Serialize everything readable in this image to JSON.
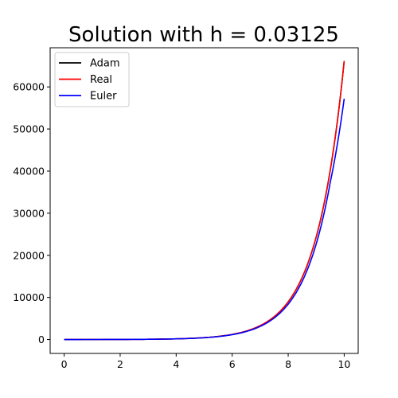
{
  "chart_data": {
    "type": "line",
    "title": "Solution with h = 0.03125",
    "xlabel": "",
    "ylabel": "",
    "xlim": [
      -0.5,
      10.5
    ],
    "ylim": [
      -3300,
      69300
    ],
    "x_ticks": [
      0,
      2,
      4,
      6,
      8,
      10
    ],
    "y_ticks": [
      0,
      10000,
      20000,
      30000,
      40000,
      50000,
      60000
    ],
    "x_tick_labels": [
      "0",
      "2",
      "4",
      "6",
      "8",
      "10"
    ],
    "y_tick_labels": [
      "0",
      "10000",
      "20000",
      "30000",
      "40000",
      "50000",
      "60000"
    ],
    "grid": false,
    "legend": {
      "placement": "upper-left"
    },
    "series": [
      {
        "name": "Adam",
        "color": "#000000",
        "x": [
          0,
          1,
          2,
          3,
          4,
          5,
          6,
          7,
          7.5,
          8,
          8.5,
          9,
          9.5,
          10
        ],
        "y": [
          3,
          8,
          22,
          60,
          164,
          446,
          1212,
          3294,
          5431,
          8955,
          14764,
          24343,
          40135,
          66170
        ]
      },
      {
        "name": "Real",
        "color": "#ff0000",
        "x": [
          0,
          1,
          2,
          3,
          4,
          5,
          6,
          7,
          7.5,
          8,
          8.5,
          9,
          9.5,
          10
        ],
        "y": [
          3,
          8,
          22,
          60,
          164,
          446,
          1212,
          3294,
          5431,
          8955,
          14764,
          24343,
          40135,
          66170
        ]
      },
      {
        "name": "Euler",
        "color": "#0000ff",
        "x": [
          0,
          1,
          2,
          3,
          4,
          5,
          6,
          7,
          7.5,
          8,
          8.5,
          9,
          9.5,
          10
        ],
        "y": [
          3,
          8,
          21,
          58,
          158,
          427,
          1154,
          3115,
          5117,
          8405,
          13808,
          22681,
          37257,
          57200
        ]
      }
    ]
  }
}
